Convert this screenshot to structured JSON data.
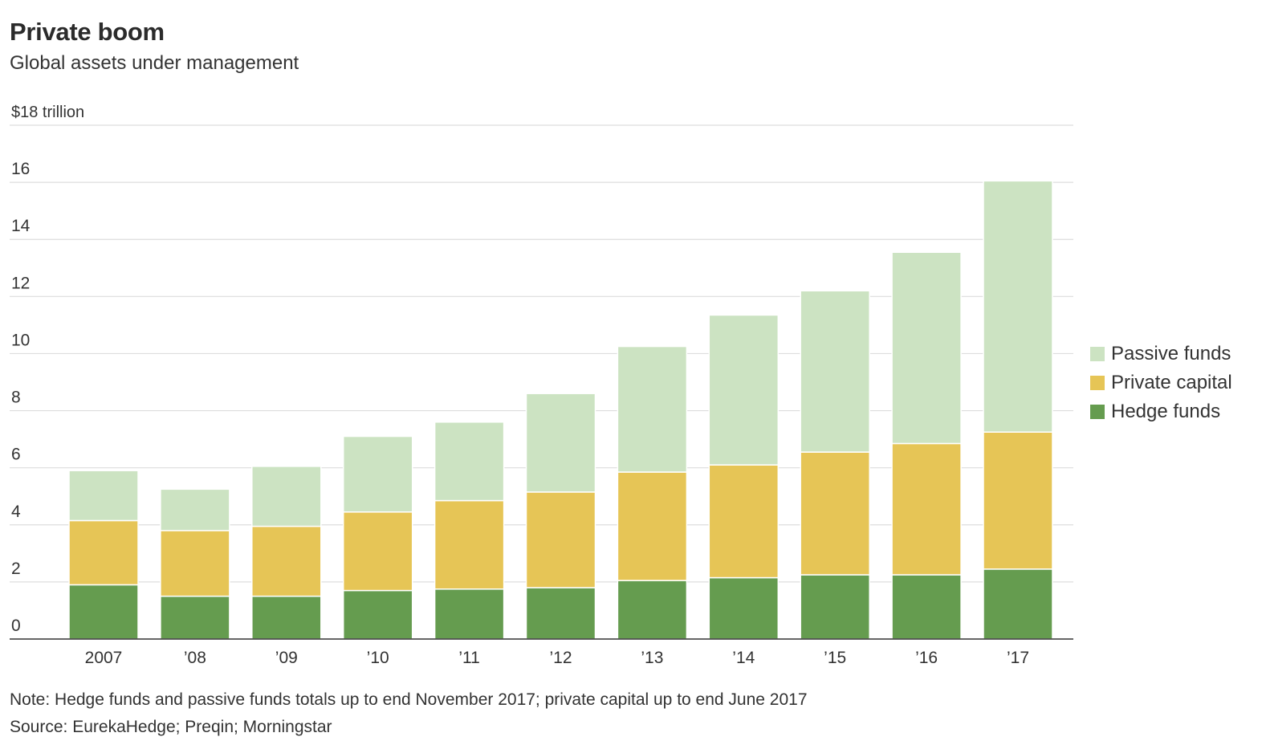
{
  "header": {
    "title": "Private boom",
    "subtitle": "Global assets under management"
  },
  "footer": {
    "note": "Note: Hedge funds and passive funds totals up to end November 2017; private capital up to end June 2017",
    "source": "Source: EurekaHedge; Preqin; Morningstar"
  },
  "legend": {
    "items": [
      {
        "label": "Passive funds",
        "color": "#cce3c2"
      },
      {
        "label": "Private capital",
        "color": "#e6c556"
      },
      {
        "label": "Hedge funds",
        "color": "#659c4f"
      }
    ]
  },
  "chart_data": {
    "type": "bar",
    "stacked": true,
    "title": "Private boom",
    "subtitle": "Global assets under management",
    "unit_label": "$18 trillion",
    "categories": [
      "2007",
      "’08",
      "’09",
      "’10",
      "’11",
      "’12",
      "’13",
      "’14",
      "’15",
      "’16",
      "’17"
    ],
    "series": [
      {
        "name": "Hedge funds",
        "color": "#659c4f",
        "values": [
          1.9,
          1.5,
          1.5,
          1.7,
          1.75,
          1.8,
          2.05,
          2.15,
          2.25,
          2.25,
          2.45
        ]
      },
      {
        "name": "Private capital",
        "color": "#e6c556",
        "values": [
          2.25,
          2.3,
          2.45,
          2.75,
          3.1,
          3.35,
          3.8,
          3.95,
          4.3,
          4.6,
          4.8
        ]
      },
      {
        "name": "Passive funds",
        "color": "#cce3c2",
        "values": [
          1.75,
          1.45,
          2.1,
          2.65,
          2.75,
          3.45,
          4.4,
          5.25,
          5.65,
          6.7,
          8.8
        ]
      }
    ],
    "yticks": [
      "0",
      "2",
      "4",
      "6",
      "8",
      "10",
      "12",
      "14",
      "16",
      "$18 trillion"
    ],
    "ylim": [
      0,
      18
    ],
    "grid": true,
    "legend_position": "right"
  }
}
